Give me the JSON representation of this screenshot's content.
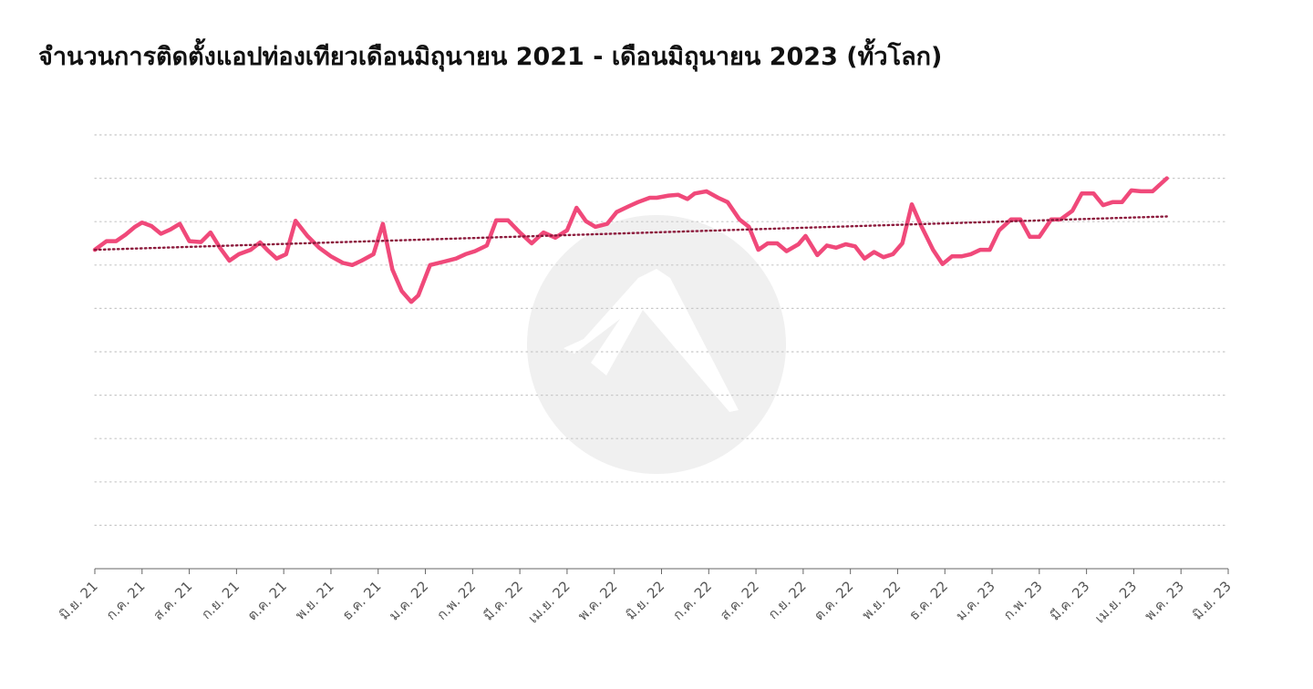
{
  "title": "จำนวนการติดตั้งแอปท่องเทียวเดือนมิถุนายน 2021 - เดือนมิถุนายน 2023 (ทั้วโลก)",
  "colors": {
    "line": "#f0497a",
    "trend": "#8c1a3c",
    "grid": "#c8c8c8",
    "axis": "#666666",
    "watermark": "#f0f0f0"
  },
  "chart_data": {
    "type": "line",
    "title": "จำนวนการติดตั้งแอปท่องเทียวเดือนมิถุนายน 2021 - เดือนมิถุนายน 2023 (ทั้วโลก)",
    "xlabel": "",
    "ylabel": "",
    "grid": true,
    "y_axis_labels_shown": false,
    "ylim": [
      0,
      100
    ],
    "tick_labels": [
      "มิ.ย. 21",
      "ก.ค. 21",
      "ส.ค. 21",
      "ก.ย. 21",
      "ต.ค. 21",
      "พ.ย. 21",
      "ธ.ค. 21",
      "ม.ค. 22",
      "ก.พ. 22",
      "มี.ค. 22",
      "เม.ย. 22",
      "พ.ค. 22",
      "มิ.ย. 22",
      "ก.ค. 22",
      "ส.ค. 22",
      "ก.ย. 22",
      "ต.ค. 22",
      "พ.ย. 22",
      "ธ.ค. 22",
      "ม.ค. 23",
      "ก.พ. 23",
      "มี.ค. 23",
      "เม.ย. 23",
      "พ.ค. 23",
      "มิ.ย. 23"
    ],
    "x_range": [
      0,
      24
    ],
    "series": [
      {
        "values": [
          [
            0,
            73.5
          ],
          [
            0.25,
            75.5
          ],
          [
            0.45,
            75.5
          ],
          [
            0.65,
            77
          ],
          [
            0.85,
            78.8
          ],
          [
            1.0,
            79.8
          ],
          [
            1.2,
            79
          ],
          [
            1.4,
            77.2
          ],
          [
            1.6,
            78.2
          ],
          [
            1.8,
            79.5
          ],
          [
            2.0,
            75.5
          ],
          [
            2.25,
            75.3
          ],
          [
            2.45,
            77.5
          ],
          [
            2.65,
            74
          ],
          [
            2.85,
            71
          ],
          [
            3.05,
            72.5
          ],
          [
            3.3,
            73.5
          ],
          [
            3.5,
            75.2
          ],
          [
            3.65,
            73.5
          ],
          [
            3.85,
            71.5
          ],
          [
            4.05,
            72.5
          ],
          [
            4.25,
            80.2
          ],
          [
            4.5,
            76.7
          ],
          [
            4.75,
            74
          ],
          [
            5.0,
            72
          ],
          [
            5.25,
            70.5
          ],
          [
            5.45,
            70
          ],
          [
            5.65,
            71
          ],
          [
            5.9,
            72.5
          ],
          [
            6.1,
            79.5
          ],
          [
            6.3,
            69
          ],
          [
            6.5,
            64
          ],
          [
            6.7,
            61.5
          ],
          [
            6.85,
            63
          ],
          [
            7.1,
            70
          ],
          [
            7.4,
            70.8
          ],
          [
            7.65,
            71.5
          ],
          [
            7.85,
            72.5
          ],
          [
            8.05,
            73.2
          ],
          [
            8.3,
            74.5
          ],
          [
            8.5,
            80.3
          ],
          [
            8.75,
            80.3
          ],
          [
            9.0,
            77.5
          ],
          [
            9.25,
            75
          ],
          [
            9.5,
            77.5
          ],
          [
            9.75,
            76.3
          ],
          [
            10.0,
            78
          ],
          [
            10.2,
            83.2
          ],
          [
            10.4,
            80.1
          ],
          [
            10.6,
            78.8
          ],
          [
            10.85,
            79.5
          ],
          [
            11.05,
            82.2
          ],
          [
            11.3,
            83.5
          ],
          [
            11.5,
            84.5
          ],
          [
            11.75,
            85.5
          ],
          [
            11.9,
            85.5
          ],
          [
            12.15,
            86
          ],
          [
            12.35,
            86.2
          ],
          [
            12.55,
            85.2
          ],
          [
            12.7,
            86.5
          ],
          [
            12.95,
            87
          ],
          [
            13.2,
            85.5
          ],
          [
            13.4,
            84.5
          ],
          [
            13.65,
            80.5
          ],
          [
            13.85,
            78.8
          ],
          [
            14.05,
            73.5
          ],
          [
            14.25,
            75
          ],
          [
            14.45,
            75
          ],
          [
            14.65,
            73.2
          ],
          [
            14.9,
            74.8
          ],
          [
            15.05,
            76.7
          ],
          [
            15.3,
            72.3
          ],
          [
            15.5,
            74.5
          ],
          [
            15.7,
            74
          ],
          [
            15.9,
            74.8
          ],
          [
            16.1,
            74.3
          ],
          [
            16.3,
            71.5
          ],
          [
            16.5,
            73
          ],
          [
            16.7,
            71.8
          ],
          [
            16.9,
            72.5
          ],
          [
            17.1,
            75
          ],
          [
            17.3,
            84
          ],
          [
            17.5,
            79
          ],
          [
            17.75,
            73.5
          ],
          [
            17.95,
            70.2
          ],
          [
            18.15,
            72
          ],
          [
            18.35,
            72
          ],
          [
            18.55,
            72.5
          ],
          [
            18.75,
            73.5
          ],
          [
            18.95,
            73.5
          ],
          [
            19.15,
            78
          ],
          [
            19.4,
            80.5
          ],
          [
            19.6,
            80.5
          ],
          [
            19.8,
            76.5
          ],
          [
            20.0,
            76.5
          ],
          [
            20.25,
            80.5
          ],
          [
            20.45,
            80.5
          ],
          [
            20.7,
            82.5
          ],
          [
            20.9,
            86.5
          ],
          [
            21.15,
            86.5
          ],
          [
            21.35,
            83.8
          ],
          [
            21.55,
            84.5
          ],
          [
            21.75,
            84.5
          ],
          [
            21.95,
            87.2
          ],
          [
            22.15,
            87
          ],
          [
            22.4,
            87
          ],
          [
            22.7,
            90
          ]
        ]
      },
      {
        "trend": true,
        "values": [
          [
            0,
            73.5
          ],
          [
            22.7,
            81.2
          ]
        ]
      }
    ]
  }
}
